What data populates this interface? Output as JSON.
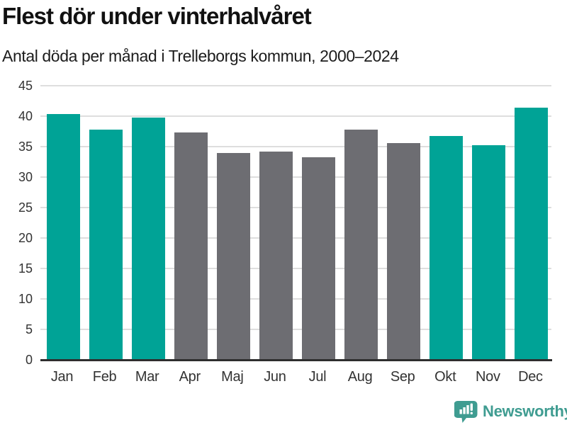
{
  "header": {
    "title": "Flest dör under vinterhalvåret",
    "subtitle": "Antal döda per månad i Trelleborgs kommun, 2000–2024"
  },
  "chart_data": {
    "type": "bar",
    "title": "Flest dör under vinterhalvåret",
    "subtitle": "Antal döda per månad i Trelleborgs kommun, 2000–2024",
    "categories": [
      "Jan",
      "Feb",
      "Mar",
      "Apr",
      "Maj",
      "Jun",
      "Jul",
      "Aug",
      "Sep",
      "Okt",
      "Nov",
      "Dec"
    ],
    "values": [
      40.4,
      37.8,
      39.8,
      37.3,
      34.0,
      34.2,
      33.3,
      37.8,
      35.6,
      36.8,
      35.2,
      41.4
    ],
    "bar_color_roles": [
      "winter",
      "winter",
      "winter",
      "summer",
      "summer",
      "summer",
      "summer",
      "summer",
      "summer",
      "winter",
      "winter",
      "winter"
    ],
    "colors": {
      "winter": "#00A396",
      "summer": "#6D6D72"
    },
    "xlabel": "",
    "ylabel": "",
    "ylim": [
      0,
      45
    ],
    "yticks": [
      0,
      5,
      10,
      15,
      20,
      25,
      30,
      35,
      40,
      45
    ],
    "grid": true,
    "legend_position": "none"
  },
  "footer": {
    "brand": "Newsworthy",
    "brand_color": "#3F9C91",
    "logo_icon": "newsworthy-speech-bubble-chart-icon"
  }
}
